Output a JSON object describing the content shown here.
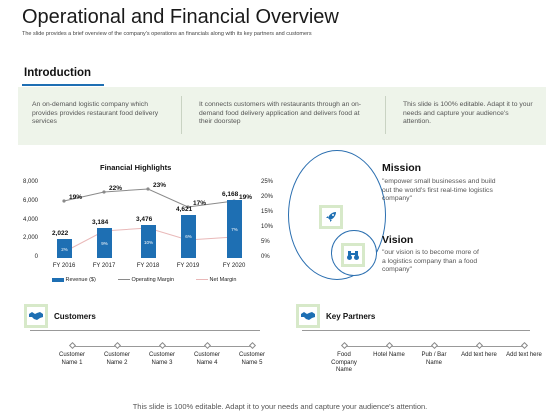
{
  "header": {
    "title": "Operational and Financial Overview",
    "subtitle": "The slide provides a brief overview of the company's operations an financials along with its key partners and customers"
  },
  "introduction": {
    "heading": "Introduction",
    "columns": [
      "An on-demand logistic company which provides provides restaurant food delivery services",
      "It connects customers with restaurants through an on-demand food delivery application and delivers food at their doorstep",
      "This slide is 100% editable. Adapt it to your needs and capture your audience's attention."
    ]
  },
  "chart_data": {
    "type": "bar",
    "title": "Financial Highlights",
    "categories": [
      "FY 2016",
      "FY 2017",
      "FY 2018",
      "FY 2019",
      "FY 2020"
    ],
    "series": [
      {
        "name": "Revenue ($)",
        "type": "bar",
        "axis": "left",
        "values": [
          2022,
          3184,
          3476,
          4621,
          6168
        ],
        "labels": [
          "2,022",
          "3,184",
          "3,476",
          "4,621",
          "6,168"
        ],
        "inner_labels": [
          "2%",
          "9%",
          "10%",
          "6%",
          "7%"
        ]
      },
      {
        "name": "Operating Margin",
        "type": "line",
        "axis": "right",
        "values": [
          19,
          22,
          23,
          17,
          19
        ],
        "labels": [
          "19%",
          "22%",
          "23%",
          "17%",
          "19%"
        ]
      },
      {
        "name": "Net Margin",
        "type": "line",
        "axis": "right",
        "values": [
          2,
          9,
          10,
          6,
          7
        ]
      }
    ],
    "y_left_ticks": [
      "0",
      "2,000",
      "4,000",
      "6,000",
      "8,000"
    ],
    "y_left_range": [
      0,
      8000
    ],
    "y_right_ticks": [
      "0%",
      "5%",
      "10%",
      "15%",
      "20%",
      "25%"
    ],
    "y_right_range": [
      0,
      25
    ],
    "legend_position": "bottom",
    "colors": {
      "revenue": "#1e6fb3",
      "operating_margin": "#8a8a8a",
      "net_margin": "#e9b8b8"
    }
  },
  "mission": {
    "title": "Mission",
    "text": "\"empower small businesses and build out the world's first real-time logistics company\"",
    "icon": "rocket-icon"
  },
  "vision": {
    "title": "Vision",
    "text": "\"our vision is to become more of a logistics company than a food company\"",
    "icon": "binoculars-icon"
  },
  "customers": {
    "title": "Customers",
    "icon": "handshake-icon",
    "items": [
      "Customer Name 1",
      "Customer Name 2",
      "Customer Name 3",
      "Customer Name 4",
      "Customer Name 5"
    ]
  },
  "partners": {
    "title": "Key Partners",
    "icon": "handshake-icon",
    "items": [
      "Food Company Name",
      "Hotel Name",
      "Pub / Bar Name",
      "Add text here",
      "Add text here"
    ]
  },
  "footer": {
    "text": "This slide is 100% editable. Adapt it to your needs and capture your audience's attention."
  },
  "colors": {
    "accent": "#1e6fb3",
    "band": "#eef4ea",
    "icon_bg": "#d7e9c9"
  }
}
